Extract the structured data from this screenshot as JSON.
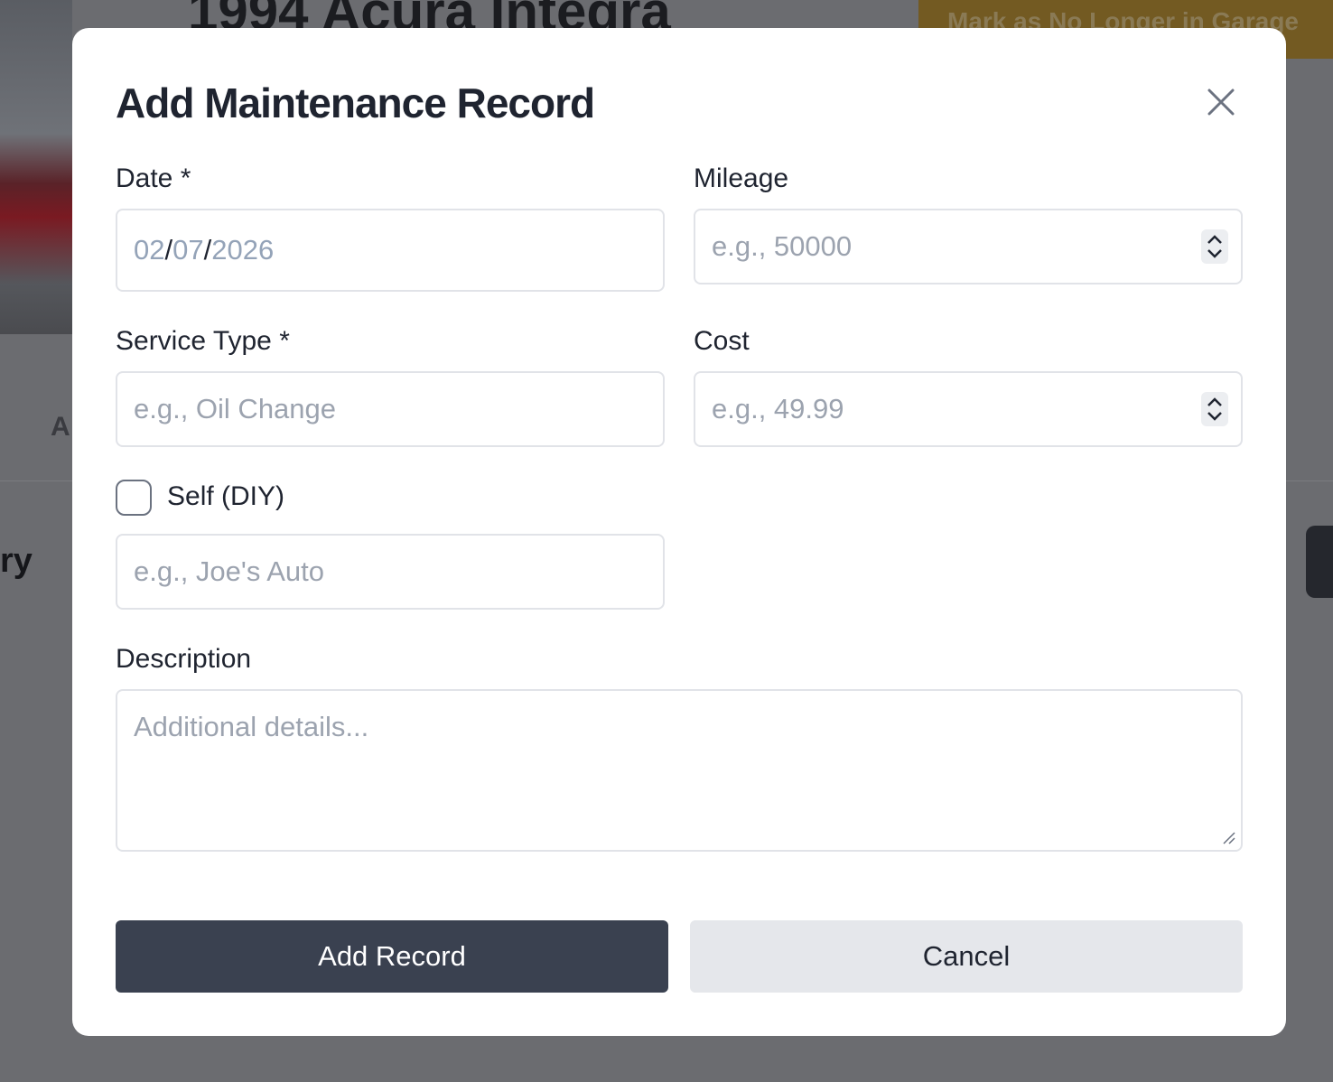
{
  "background": {
    "vehicle_title": "1994 Acura Integra",
    "garage_button": "Mark as No Longer in Garage",
    "tab_fragment": "A",
    "heading_fragment": "ry"
  },
  "modal": {
    "title": "Add Maintenance Record",
    "date": {
      "label": "Date *",
      "month": "02",
      "day": "07",
      "year": "2026",
      "sep": "/"
    },
    "mileage": {
      "label": "Mileage",
      "placeholder": "e.g., 50000"
    },
    "service_type": {
      "label": "Service Type *",
      "placeholder": "e.g., Oil Change"
    },
    "cost": {
      "label": "Cost",
      "placeholder": "e.g., 49.99"
    },
    "self_diy": {
      "label": "Self (DIY)",
      "checked": false
    },
    "shop": {
      "placeholder": "e.g., Joe's Auto"
    },
    "description": {
      "label": "Description",
      "placeholder": "Additional details..."
    },
    "submit_label": "Add Record",
    "cancel_label": "Cancel"
  },
  "colors": {
    "primary": "#3a4150",
    "secondary": "#e5e7eb",
    "garage": "#f5c02e"
  }
}
